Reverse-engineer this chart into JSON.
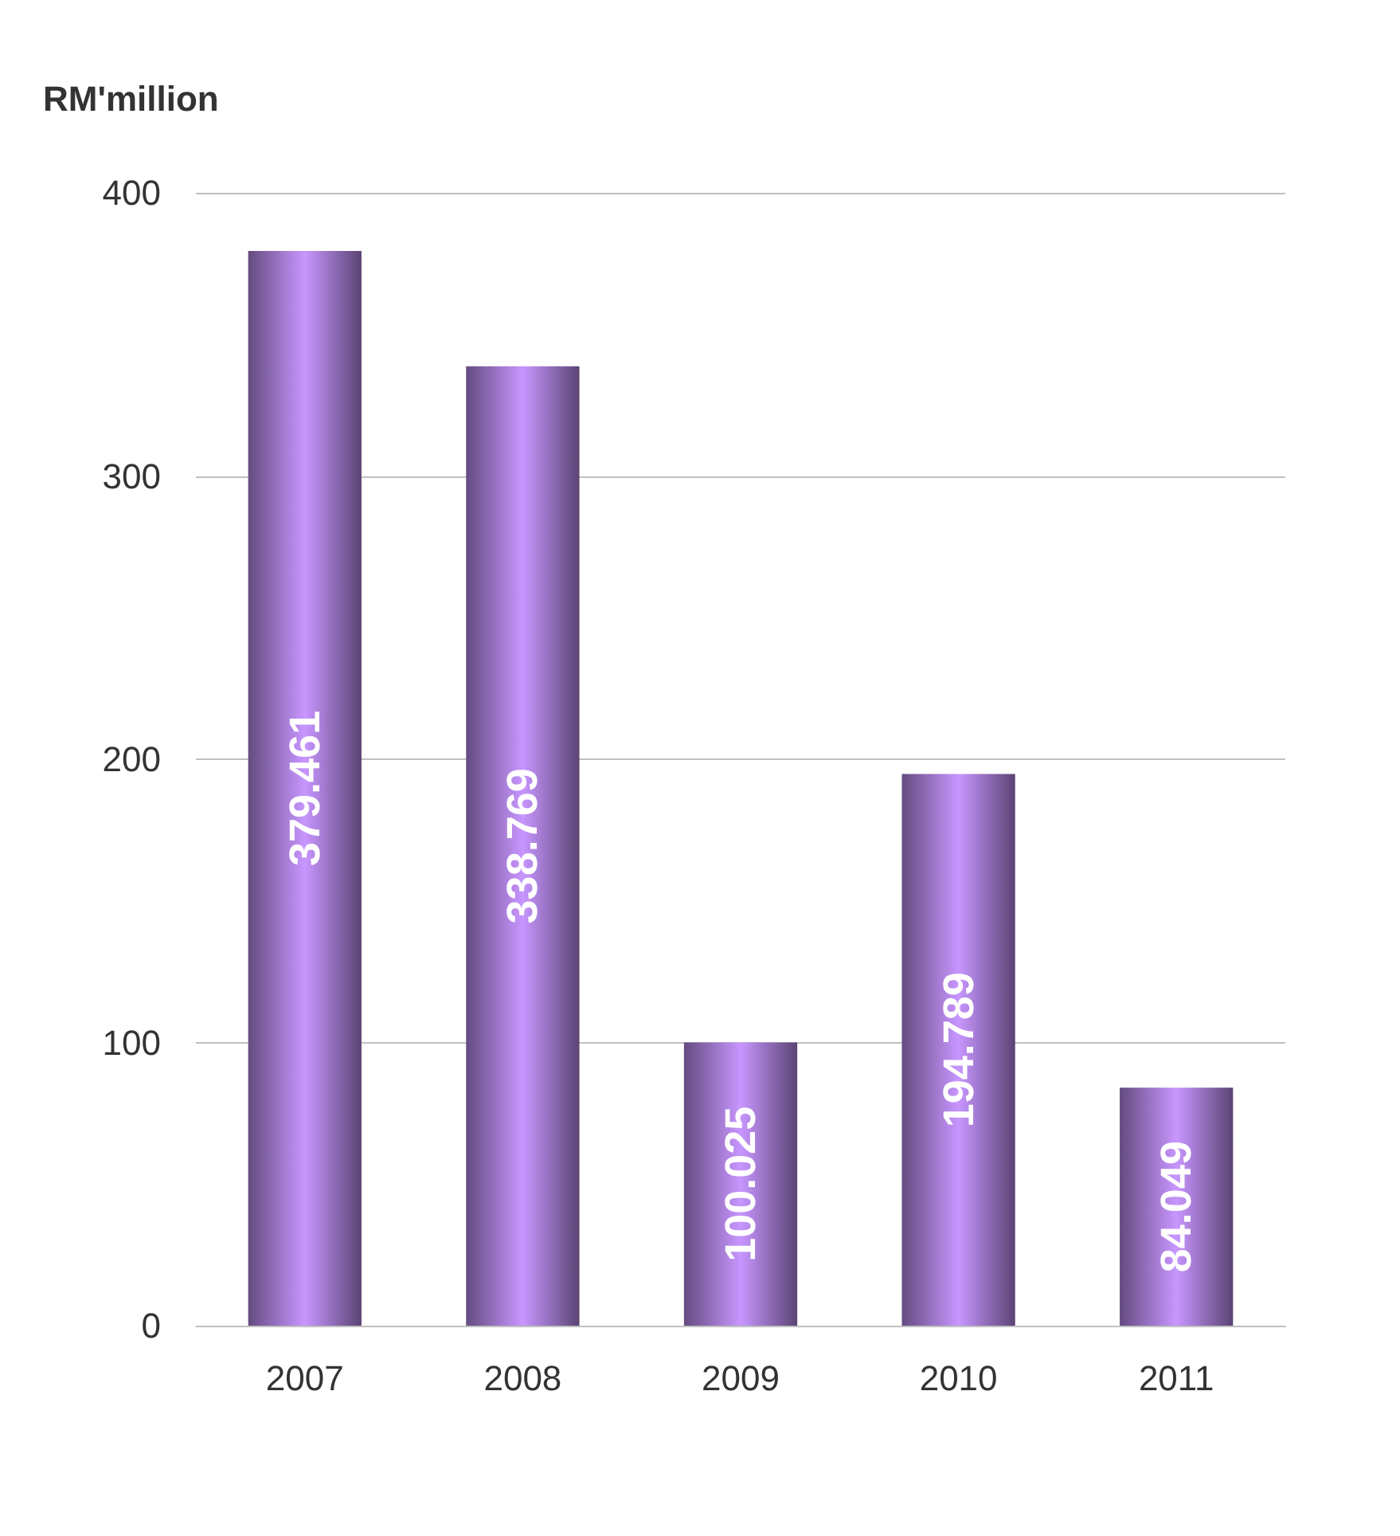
{
  "chart_data": {
    "type": "bar",
    "ylabel": "RM'million",
    "categories": [
      "2007",
      "2008",
      "2009",
      "2010",
      "2011"
    ],
    "values": [
      379.461,
      338.769,
      100.025,
      194.789,
      84.049
    ],
    "color": "#c896ff",
    "ylim": [
      0,
      400
    ],
    "yticks": [
      0,
      100,
      200,
      300,
      400
    ],
    "grid": "y",
    "data_labels": true
  }
}
